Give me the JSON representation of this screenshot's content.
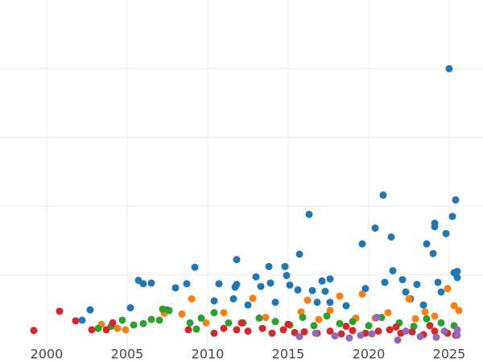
{
  "chart_data": {
    "type": "scatter",
    "xlim": [
      1997.1,
      2027.1
    ],
    "xticks": [
      2000,
      2005,
      2010,
      2015,
      2020,
      2025
    ],
    "ylim": [
      0,
      5
    ],
    "yticks": [
      1,
      2,
      3,
      4
    ],
    "grid": true,
    "series": [
      {
        "color": "#1f77b4",
        "x": [
          2002.2,
          2002.7,
          2005.2,
          2005.7,
          2006.0,
          2006.5,
          2007.5,
          2008.0,
          2008.7,
          2009.2,
          2010.4,
          2010.7,
          2011.6,
          2011.7,
          2011.8,
          2011.8,
          2012.5,
          2013.0,
          2013.3,
          2013.8,
          2013.9,
          2014.2,
          2014.8,
          2014.9,
          2015.1,
          2015.6,
          2015.7,
          2016.3,
          2016.5,
          2016.8,
          2017.1,
          2017.3,
          2017.6,
          2017.6,
          2018.6,
          2019.6,
          2019.8,
          2020.4,
          2020.9,
          2021.0,
          2021.4,
          2021.5,
          2022.1,
          2022.3,
          2023.0,
          2023.6,
          2024.0,
          2024.1,
          2024.1,
          2024.3,
          2024.8,
          2025.0,
          2025.2,
          2025.4,
          2025.3,
          2025.5,
          2025.5,
          2024.5,
          2023.4,
          2022.6
        ],
        "values": [
          0.34,
          0.49,
          0.52,
          0.92,
          0.87,
          0.88,
          0.49,
          0.81,
          0.87,
          1.11,
          0.62,
          0.87,
          0.65,
          0.82,
          0.86,
          1.22,
          0.56,
          0.97,
          0.83,
          1.12,
          0.88,
          0.6,
          1.12,
          0.99,
          0.85,
          0.78,
          1.3,
          1.88,
          0.77,
          0.6,
          0.91,
          0.76,
          0.94,
          0.6,
          0.55,
          1.45,
          0.8,
          1.68,
          2.16,
          0.89,
          1.55,
          1.06,
          0.93,
          0.75,
          0.86,
          1.45,
          1.31,
          1.75,
          1.7,
          0.89,
          1.6,
          4.0,
          1.85,
          2.09,
          1.03,
          1.05,
          0.96,
          0.75,
          0.56,
          0.65
        ]
      },
      {
        "color": "#ff7f0e",
        "x": [
          2003.4,
          2004.4,
          2007.3,
          2008.4,
          2009.0,
          2012.8,
          2016.2,
          2017.6,
          2018.2,
          2019.6,
          2020.4,
          2021.2,
          2022.5,
          2023.5,
          2024.1,
          2024.9,
          2025.3,
          2025.6,
          2015.8,
          2013.6,
          2011.0,
          2004.9,
          2009.9,
          2019.2,
          2022.9,
          2016.9
        ],
        "values": [
          0.28,
          0.22,
          0.44,
          0.43,
          0.65,
          0.66,
          0.63,
          0.48,
          0.69,
          0.72,
          0.37,
          0.45,
          0.65,
          0.46,
          0.4,
          0.8,
          0.55,
          0.48,
          0.46,
          0.38,
          0.45,
          0.2,
          0.3,
          0.37,
          0.36,
          0.35
        ]
      },
      {
        "color": "#2ca02c",
        "x": [
          2003.2,
          2004.0,
          2004.7,
          2005.4,
          2006.0,
          2006.5,
          2007.0,
          2007.2,
          2007.6,
          2008.9,
          2009.6,
          2010.4,
          2011.3,
          2012.2,
          2013.2,
          2014.2,
          2015.1,
          2015.9,
          2016.6,
          2017.4,
          2018.2,
          2019.0,
          2020.0,
          2020.8,
          2021.9,
          2022.8,
          2023.6,
          2024.5,
          2025.3,
          2009.3
        ],
        "values": [
          0.22,
          0.25,
          0.34,
          0.27,
          0.29,
          0.35,
          0.34,
          0.5,
          0.48,
          0.3,
          0.37,
          0.45,
          0.3,
          0.3,
          0.37,
          0.32,
          0.27,
          0.38,
          0.26,
          0.4,
          0.29,
          0.32,
          0.26,
          0.38,
          0.3,
          0.25,
          0.36,
          0.3,
          0.26,
          0.21
        ]
      },
      {
        "color": "#d62728",
        "x": [
          1999.2,
          2000.8,
          2001.8,
          2002.8,
          2003.7,
          2004.1,
          2008.8,
          2010.4,
          2011.0,
          2011.8,
          2012.5,
          2013.4,
          2014.0,
          2014.7,
          2015.4,
          2016.0,
          2016.8,
          2017.6,
          2018.3,
          2019.0,
          2019.8,
          2020.6,
          2021.3,
          2022.0,
          2022.7,
          2023.4,
          2024.1,
          2024.9,
          2025.4,
          2012.1,
          2015.0,
          2018.6,
          2021.7,
          2023.8
        ],
        "values": [
          0.19,
          0.47,
          0.33,
          0.2,
          0.2,
          0.3,
          0.2,
          0.15,
          0.22,
          0.2,
          0.18,
          0.22,
          0.15,
          0.2,
          0.16,
          0.17,
          0.15,
          0.18,
          0.14,
          0.19,
          0.15,
          0.18,
          0.2,
          0.15,
          0.17,
          0.13,
          0.18,
          0.15,
          0.12,
          0.3,
          0.28,
          0.25,
          0.24,
          0.26
        ]
      },
      {
        "color": "#9467bd",
        "x": [
          2015.7,
          2016.7,
          2018.8,
          2019.5,
          2020.5,
          2021.8,
          2022.3,
          2023.2,
          2024.2,
          2024.7,
          2025.5,
          2025.5,
          2020.2,
          2017.9
        ],
        "values": [
          0.1,
          0.15,
          0.08,
          0.12,
          0.38,
          0.05,
          0.18,
          0.1,
          0.09,
          0.18,
          0.2,
          0.12,
          0.14,
          0.11
        ]
      }
    ]
  }
}
